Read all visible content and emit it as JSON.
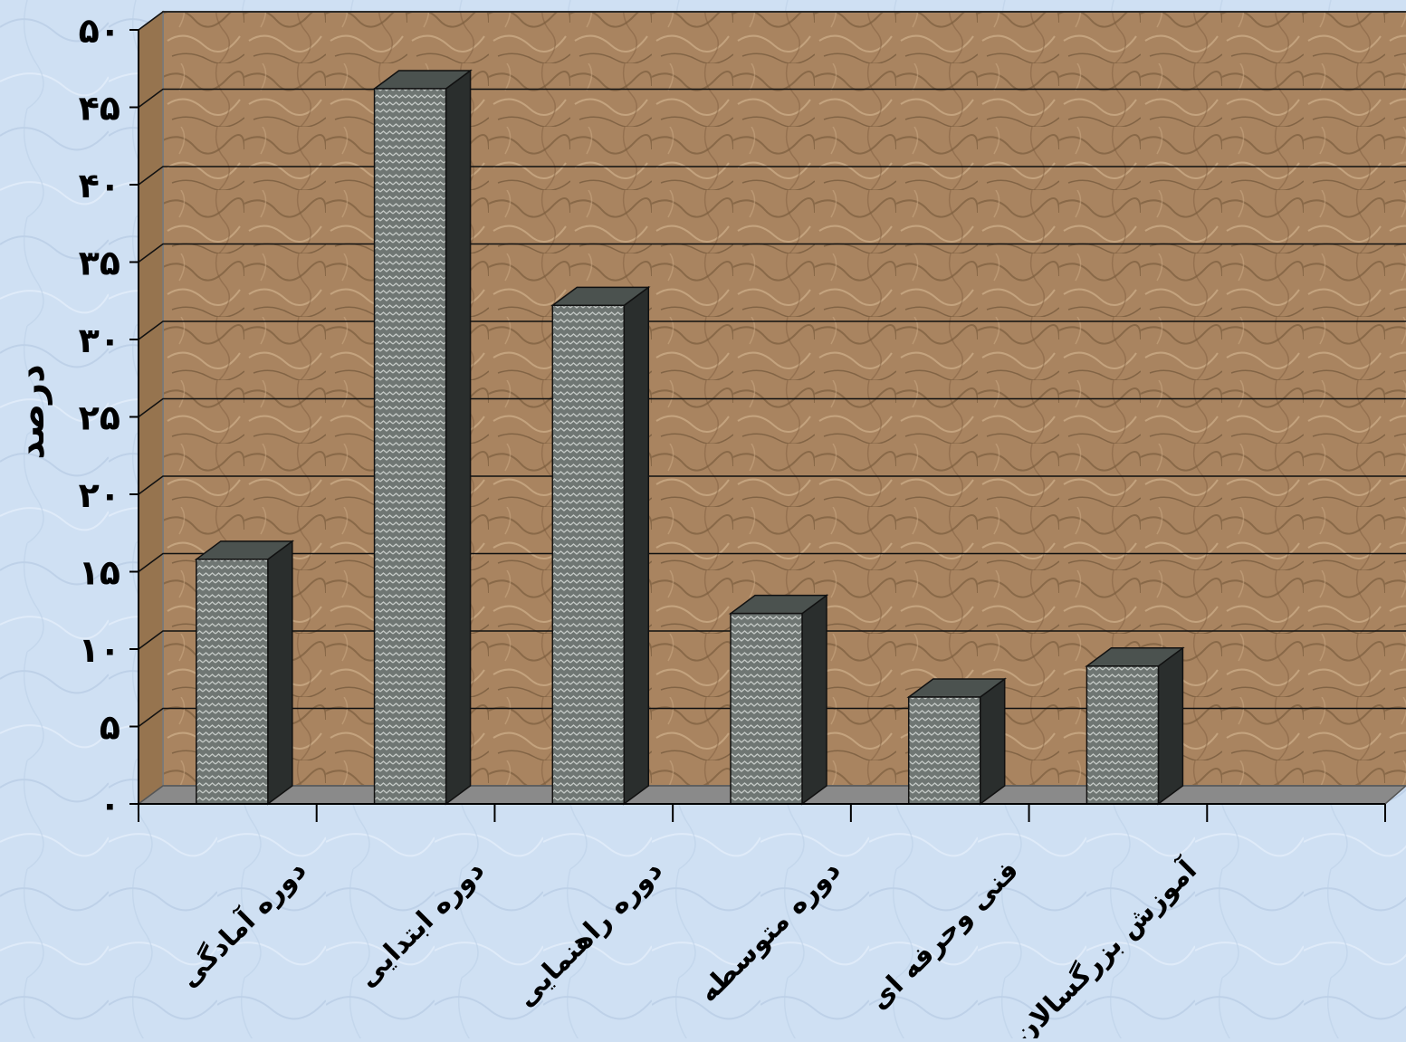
{
  "chart_data": {
    "type": "bar",
    "title": "",
    "xlabel": "",
    "ylabel": "درصد",
    "ylim": [
      0,
      50
    ],
    "yticks": [
      0,
      5,
      10,
      15,
      20,
      25,
      30,
      35,
      40,
      45,
      50
    ],
    "ytick_labels": [
      "٠",
      "۵",
      "١٠",
      "١۵",
      "٢٠",
      "٢۵",
      "٣٠",
      "٣۵",
      "۴٠",
      "۴۵",
      "۵٠"
    ],
    "categories": [
      "دوره آمادگی",
      "دوره ابتدایی",
      "دوره راهنمایی",
      "دوره متوسطه",
      "فنی وحرفه ای",
      "آموزش بزرگسالان"
    ],
    "values": [
      15.8,
      46.2,
      32.2,
      12.3,
      6.9,
      8.9
    ],
    "grid": true,
    "legend": "none",
    "colors": {
      "page_background": "#cfe0f3",
      "wall": "#a98460",
      "floor": "#8a8a8a",
      "bar_front": "#6f7673",
      "bar_side": "#2a2e2d",
      "bar_top": "#4b524f"
    }
  }
}
